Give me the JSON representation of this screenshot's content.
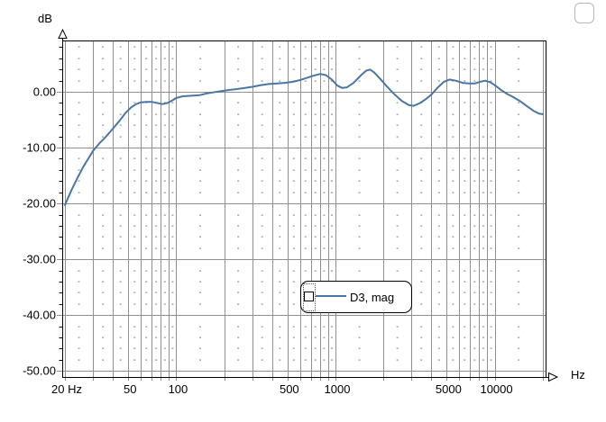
{
  "labels": {
    "y_axis_unit": "dB",
    "x_axis_unit": "Hz"
  },
  "chart_data": {
    "type": "line",
    "title": "",
    "x_scale": "log",
    "xlim": [
      20,
      20000
    ],
    "ylim": [
      -51.1,
      9.2
    ],
    "x_axis_unit": "Hz",
    "y_axis_unit": "dB",
    "grid": "on",
    "y_minor_step": 2,
    "x_ticks": [
      {
        "value": 20,
        "label": "20 Hz"
      },
      {
        "value": 50,
        "label": "50"
      },
      {
        "value": 100,
        "label": "100"
      },
      {
        "value": 500,
        "label": "500"
      },
      {
        "value": 1000,
        "label": "1000"
      },
      {
        "value": 5000,
        "label": "5000"
      },
      {
        "value": 10000,
        "label": "10000"
      }
    ],
    "y_ticks": [
      {
        "value": 0,
        "label": "0.00"
      },
      {
        "value": -10,
        "label": "-10.00"
      },
      {
        "value": -20,
        "label": "-20.00"
      },
      {
        "value": -30,
        "label": "-30.00"
      },
      {
        "value": -40,
        "label": "-40.00"
      },
      {
        "value": -50,
        "label": "-50.00"
      }
    ],
    "grid_major_freqs": [
      20,
      30,
      40,
      50,
      60,
      70,
      80,
      90,
      100,
      200,
      300,
      400,
      500,
      600,
      700,
      800,
      900,
      1000,
      2000,
      3000,
      4000,
      5000,
      6000,
      7000,
      8000,
      9000,
      10000,
      20000
    ],
    "legend": {
      "label": "D3, mag",
      "position": "center"
    },
    "colors": {
      "curve": "#4a76a4",
      "grid": "#909090",
      "axis": "#000000",
      "background": "#ffffff"
    },
    "series": [
      {
        "name": "D3, mag",
        "color": "#4a76a4",
        "points": [
          [
            20,
            -20.3
          ],
          [
            21,
            -18.9
          ],
          [
            22,
            -17.6
          ],
          [
            24,
            -15.4
          ],
          [
            26,
            -13.5
          ],
          [
            28,
            -12.0
          ],
          [
            30,
            -10.6
          ],
          [
            33,
            -9.2
          ],
          [
            36,
            -8.1
          ],
          [
            40,
            -6.6
          ],
          [
            44,
            -5.2
          ],
          [
            48,
            -3.8
          ],
          [
            52,
            -2.8
          ],
          [
            56,
            -2.2
          ],
          [
            60,
            -1.9
          ],
          [
            65,
            -1.8
          ],
          [
            70,
            -1.8
          ],
          [
            76,
            -2.0
          ],
          [
            82,
            -2.2
          ],
          [
            88,
            -2.0
          ],
          [
            95,
            -1.5
          ],
          [
            100,
            -1.1
          ],
          [
            110,
            -0.8
          ],
          [
            125,
            -0.7
          ],
          [
            140,
            -0.6
          ],
          [
            155,
            -0.3
          ],
          [
            170,
            -0.1
          ],
          [
            190,
            0.1
          ],
          [
            210,
            0.3
          ],
          [
            240,
            0.5
          ],
          [
            270,
            0.7
          ],
          [
            300,
            0.9
          ],
          [
            340,
            1.2
          ],
          [
            380,
            1.4
          ],
          [
            430,
            1.5
          ],
          [
            480,
            1.6
          ],
          [
            540,
            1.8
          ],
          [
            600,
            2.1
          ],
          [
            660,
            2.5
          ],
          [
            730,
            2.9
          ],
          [
            800,
            3.2
          ],
          [
            870,
            3.0
          ],
          [
            950,
            2.2
          ],
          [
            1030,
            1.1
          ],
          [
            1100,
            0.7
          ],
          [
            1180,
            0.8
          ],
          [
            1300,
            1.6
          ],
          [
            1450,
            3.0
          ],
          [
            1560,
            3.8
          ],
          [
            1650,
            4.0
          ],
          [
            1750,
            3.5
          ],
          [
            1900,
            2.4
          ],
          [
            2100,
            1.0
          ],
          [
            2300,
            -0.2
          ],
          [
            2600,
            -1.6
          ],
          [
            2900,
            -2.4
          ],
          [
            3100,
            -2.5
          ],
          [
            3400,
            -2.0
          ],
          [
            3700,
            -1.3
          ],
          [
            4000,
            -0.5
          ],
          [
            4400,
            0.8
          ],
          [
            4800,
            1.8
          ],
          [
            5200,
            2.2
          ],
          [
            5700,
            2.0
          ],
          [
            6300,
            1.6
          ],
          [
            6900,
            1.5
          ],
          [
            7500,
            1.5
          ],
          [
            8100,
            1.8
          ],
          [
            8700,
            2.0
          ],
          [
            9400,
            1.7
          ],
          [
            10000,
            1.2
          ],
          [
            11000,
            0.3
          ],
          [
            12000,
            -0.4
          ],
          [
            13000,
            -0.9
          ],
          [
            14500,
            -1.7
          ],
          [
            16000,
            -2.6
          ],
          [
            17500,
            -3.4
          ],
          [
            19000,
            -3.9
          ],
          [
            20000,
            -4.0
          ]
        ]
      }
    ]
  }
}
